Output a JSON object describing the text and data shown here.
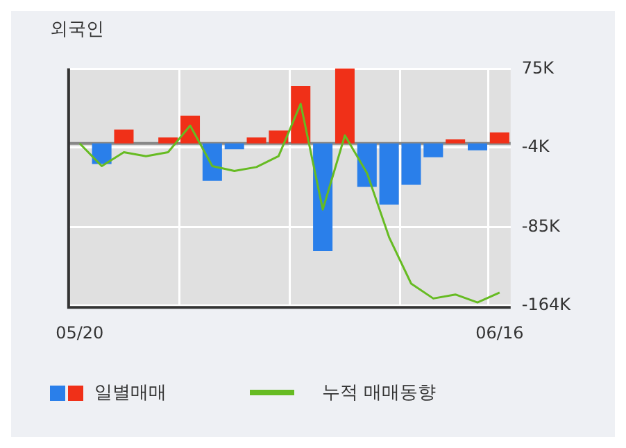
{
  "chart_data": {
    "type": "bar",
    "title": "외국인",
    "categories": [
      "05/20",
      null,
      null,
      null,
      null,
      null,
      null,
      null,
      null,
      null,
      null,
      null,
      null,
      null,
      null,
      null,
      null,
      null,
      null,
      "06/16"
    ],
    "series": [
      {
        "name": "일별매매",
        "colors": [
          "#f03018",
          "#2a7fea",
          "#f03018",
          "#f03018",
          "#f03018",
          "#f03018",
          "#2a7fea",
          "#2a7fea",
          "#f03018",
          "#f03018",
          "#f03018",
          "#2a7fea",
          "#f03018",
          "#2a7fea",
          "#2a7fea",
          "#2a7fea",
          "#2a7fea",
          "#f03018",
          "#2a7fea",
          "#f03018"
        ],
        "values": [
          0,
          -21,
          14,
          0,
          6,
          28,
          -38,
          -6,
          6,
          13,
          58,
          -109,
          76,
          -44,
          -62,
          -42,
          -14,
          4,
          -7,
          11
        ]
      },
      {
        "name": "누적 매매동향",
        "type": "line",
        "color": "#66bb22",
        "values": [
          0,
          -23,
          -9,
          -13,
          -9,
          18,
          -23,
          -28,
          -24,
          -13,
          40,
          -67,
          8,
          -30,
          -95,
          -142,
          -157,
          -153,
          -161,
          -151
        ]
      }
    ],
    "ylim": [
      -166,
      76
    ],
    "yticks": [
      {
        "value": 75,
        "label": "75K"
      },
      {
        "value": -4,
        "label": "-4K"
      },
      {
        "value": -85,
        "label": "-85K"
      },
      {
        "value": -164,
        "label": "-164K"
      }
    ],
    "ref_lines": [
      {
        "axis": "y",
        "value": 0,
        "color": "#888888"
      }
    ],
    "grid": true,
    "legend": "bottom",
    "marker": "none",
    "line_style": "solid"
  }
}
